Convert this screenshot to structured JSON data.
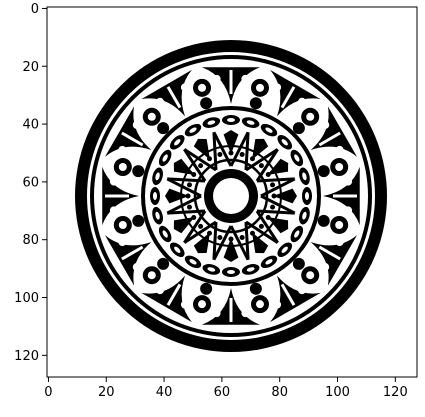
{
  "figure": {
    "image_name": "mandala-rosette",
    "x_axis": {
      "range": [
        -0.5,
        127.5
      ],
      "ticks": [
        0,
        20,
        40,
        60,
        80,
        100,
        120
      ]
    },
    "y_axis": {
      "range": [
        -0.5,
        127.5
      ],
      "inverted": true,
      "ticks": [
        0,
        20,
        40,
        60,
        80,
        100,
        120
      ]
    },
    "colors": {
      "ink": "#000000",
      "paper": "#ffffff",
      "frame": "#000000"
    }
  }
}
